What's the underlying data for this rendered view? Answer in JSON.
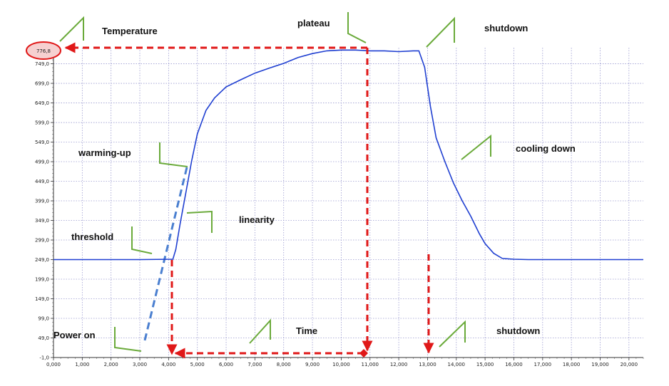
{
  "chart_data": {
    "type": "line",
    "title": "",
    "xlabel": "",
    "ylabel": "",
    "xlim": [
      0,
      20500
    ],
    "ylim": [
      -1,
      790
    ],
    "grid": true,
    "x_ticks": [
      "0,000",
      "1,000",
      "2,000",
      "3,000",
      "4,000",
      "5,000",
      "6,000",
      "7,000",
      "8,000",
      "9,000",
      "10,000",
      "11,000",
      "12,000",
      "13,000",
      "14,000",
      "15,000",
      "16,000",
      "17,000",
      "18,000",
      "19,000",
      "20,000"
    ],
    "y_ticks": [
      "-1,0",
      "49,0",
      "99,0",
      "149,0",
      "199,0",
      "249,0",
      "299,0",
      "349,0",
      "399,0",
      "449,0",
      "499,0",
      "549,0",
      "599,0",
      "649,0",
      "699,0",
      "749,0"
    ],
    "highlighted_value": "776,8",
    "series": [
      {
        "color": "#1f3fd1",
        "x": [
          0,
          3000,
          4150,
          4250,
          4400,
          4600,
          4800,
          5000,
          5300,
          5600,
          6000,
          6500,
          7000,
          7500,
          8000,
          8500,
          9000,
          9500,
          10000,
          10500,
          11000,
          11500,
          12000,
          12500,
          12700,
          12900,
          13100,
          13300,
          13600,
          13900,
          14200,
          14500,
          14800,
          15000,
          15300,
          15600,
          16000,
          16500,
          17000,
          18000,
          19000,
          20500
        ],
        "y": [
          249,
          249,
          250,
          275,
          340,
          420,
          500,
          570,
          630,
          662,
          690,
          708,
          725,
          738,
          750,
          765,
          775,
          782,
          784,
          784,
          782,
          782,
          780,
          782,
          782,
          740,
          640,
          560,
          500,
          445,
          400,
          360,
          315,
          290,
          265,
          252,
          250,
          249,
          249,
          249,
          249,
          249
        ]
      }
    ],
    "annotations": [
      "Temperature",
      "plateau",
      "shutdown",
      "warming-up",
      "cooling down",
      "linearity",
      "threshold",
      "Power on",
      "Time",
      "shutdown"
    ]
  },
  "colors": {
    "curve": "#1f3fd1",
    "marker": "#e01818",
    "callout": "#6aaa3a",
    "extrapolation": "#4a7fd0",
    "grid": "#9a9ad0"
  }
}
